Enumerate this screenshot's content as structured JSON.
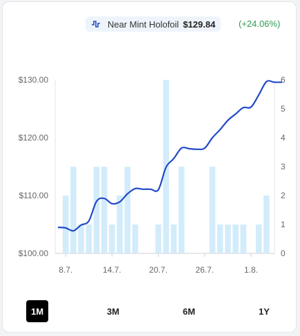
{
  "legend": {
    "condition": "Near Mint Holofoil",
    "price": "$129.84",
    "change": "(+24.06%)",
    "line_color": "#2049c8",
    "bar_color": "#d3ecfb",
    "change_color": "#2e9a52"
  },
  "ranges": [
    "1M",
    "3M",
    "6M",
    "1Y"
  ],
  "active_range": "1M",
  "chart_data": {
    "type": "line+bar",
    "x_tick_labels": [
      "8.7.",
      "14.7.",
      "20.7.",
      "26.7.",
      "1.8."
    ],
    "left_axis": {
      "ylim": [
        100,
        130
      ],
      "ticks": [
        "$100.00",
        "$110.00",
        "$120.00",
        "$130.00"
      ]
    },
    "right_axis": {
      "ylim": [
        0,
        6
      ],
      "ticks": [
        "0",
        "1",
        "2",
        "3",
        "4",
        "5",
        "6"
      ]
    },
    "price_series": {
      "x": [
        "2024-07-07",
        "2024-07-08",
        "2024-07-09",
        "2024-07-10",
        "2024-07-11",
        "2024-07-12",
        "2024-07-13",
        "2024-07-14",
        "2024-07-15",
        "2024-07-16",
        "2024-07-17",
        "2024-07-18",
        "2024-07-19",
        "2024-07-20",
        "2024-07-21",
        "2024-07-22",
        "2024-07-23",
        "2024-07-24",
        "2024-07-25",
        "2024-07-26",
        "2024-07-27",
        "2024-07-28",
        "2024-07-29",
        "2024-07-30",
        "2024-07-31",
        "2024-08-01",
        "2024-08-02",
        "2024-08-03",
        "2024-08-04",
        "2024-08-05"
      ],
      "values": [
        104.5,
        104.4,
        103.9,
        104.9,
        105.6,
        109.0,
        109.5,
        108.6,
        108.9,
        110.3,
        111.2,
        111.1,
        111.1,
        111.0,
        114.9,
        116.4,
        118.2,
        118.1,
        118.0,
        118.2,
        120.0,
        121.4,
        123.0,
        124.1,
        125.2,
        125.3,
        127.4,
        129.7,
        129.6,
        129.6
      ]
    },
    "bar_series": {
      "x": [
        "2024-07-08",
        "2024-07-09",
        "2024-07-10",
        "2024-07-11",
        "2024-07-12",
        "2024-07-13",
        "2024-07-14",
        "2024-07-15",
        "2024-07-16",
        "2024-07-17",
        "2024-07-20",
        "2024-07-21",
        "2024-07-22",
        "2024-07-23",
        "2024-07-27",
        "2024-07-28",
        "2024-07-29",
        "2024-07-30",
        "2024-07-31",
        "2024-08-02",
        "2024-08-03"
      ],
      "values": [
        2,
        3,
        1,
        1,
        3,
        3,
        1,
        2,
        3,
        1,
        1,
        6,
        1,
        3,
        3,
        1,
        1,
        1,
        1,
        1,
        2
      ]
    },
    "grid": false
  }
}
